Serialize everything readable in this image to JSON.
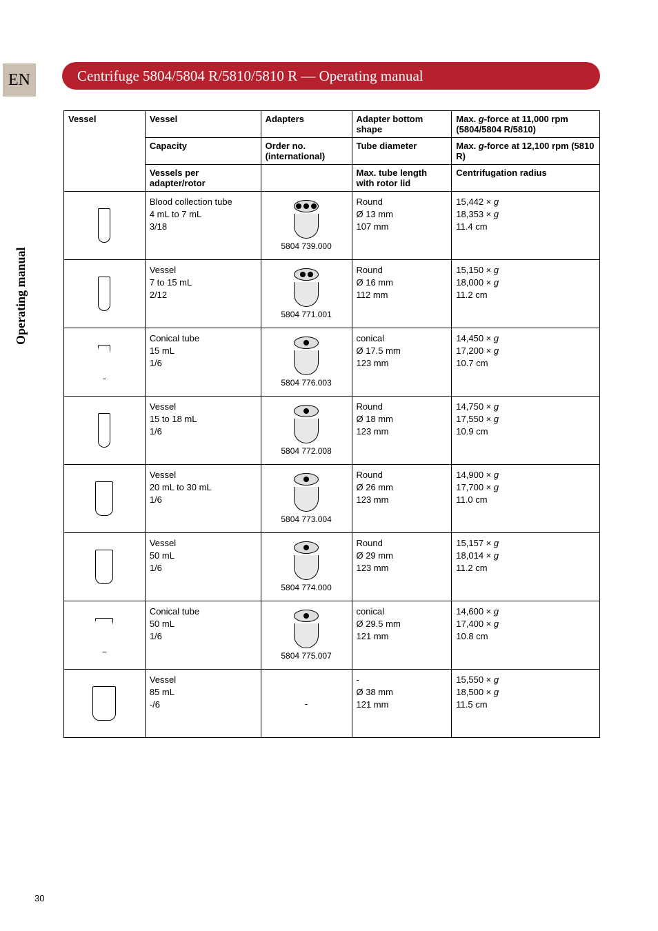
{
  "side": {
    "lang": "EN",
    "vertical": "Operating manual"
  },
  "header": {
    "title": "Centrifuge 5804/5804 R/5810/5810 R  —  Operating manual"
  },
  "page_number": "30",
  "table": {
    "headers": {
      "c1": "Vessel",
      "c2a": "Vessel",
      "c2b": "Capacity",
      "c2c": "Vessels per adapter/rotor",
      "c3a": "Adapters",
      "c3b": "Order no. (international)",
      "c4a": "Adapter bottom shape",
      "c4b": "Tube diameter",
      "c4c": "Max. tube length with rotor lid",
      "c5a_prefix": "Max. ",
      "c5a_g": "g",
      "c5a_suffix": "-force at 11,000 rpm (5804/5804 R/5810)",
      "c5b_prefix": "Max. ",
      "c5b_g": "g",
      "c5b_suffix": "-force at 12,100 rpm (5810 R)",
      "c5c": "Centrifugation radius"
    },
    "rows": [
      {
        "vessel_type": "narrow",
        "adapter_dots": 3,
        "name": "Blood collection tube",
        "capacity": "4 mL to 7 mL",
        "per": "3/18",
        "order": "5804 739.000",
        "shape": "Round",
        "diam": "Ø 13 mm",
        "len": "107 mm",
        "g1": "15,442 × ",
        "g2": "18,353 × ",
        "rad": "11.4 cm"
      },
      {
        "vessel_type": "narrow",
        "adapter_dots": 2,
        "name": "Vessel",
        "capacity": "7 to 15 mL",
        "per": "2/12",
        "order": "5804 771.001",
        "shape": "Round",
        "diam": "Ø 16 mm",
        "len": "112 mm",
        "g1": "15,150 × ",
        "g2": "18,000 × ",
        "rad": "11.2 cm"
      },
      {
        "vessel_type": "conical",
        "adapter_dots": 1,
        "name": "Conical tube",
        "capacity": "15 mL",
        "per": "1/6",
        "order": "5804 776.003",
        "shape": "conical",
        "diam": "Ø 17.5 mm",
        "len": "123 mm",
        "g1": "14,450 × ",
        "g2": "17,200 × ",
        "rad": "10.7 cm"
      },
      {
        "vessel_type": "round18",
        "adapter_dots": 1,
        "name": "Vessel",
        "capacity": "15 to 18 mL",
        "per": "1/6",
        "order": "5804 772.008",
        "shape": "Round",
        "diam": "Ø 18 mm",
        "len": "123 mm",
        "g1": "14,750 × ",
        "g2": "17,550 × ",
        "rad": "10.9 cm"
      },
      {
        "vessel_type": "wide",
        "adapter_dots": 1,
        "name": "Vessel",
        "capacity": "20 mL to 30 mL",
        "per": "1/6",
        "order": "5804 773.004",
        "shape": "Round",
        "diam": "Ø 26 mm",
        "len": "123 mm",
        "g1": "14,900 × ",
        "g2": "17,700 × ",
        "rad": "11.0 cm"
      },
      {
        "vessel_type": "wide",
        "adapter_dots": 1,
        "name": "Vessel",
        "capacity": "50 mL",
        "per": "1/6",
        "order": "5804 774.000",
        "shape": "Round",
        "diam": "Ø 29 mm",
        "len": "123 mm",
        "g1": "15,157 × ",
        "g2": "18,014 × ",
        "rad": "11.2 cm"
      },
      {
        "vessel_type": "conical-wide",
        "adapter_dots": 1,
        "name": "Conical tube",
        "capacity": "50 mL",
        "per": "1/6",
        "order": "5804 775.007",
        "shape": "conical",
        "diam": "Ø 29.5 mm",
        "len": "121 mm",
        "g1": "14,600 × ",
        "g2": "17,400 × ",
        "rad": "10.8 cm"
      },
      {
        "vessel_type": "xwide",
        "adapter_dots": 0,
        "name": "Vessel",
        "capacity": "85 mL",
        "per": "-/6",
        "order": "-",
        "shape": "-",
        "diam": "Ø 38 mm",
        "len": "121 mm",
        "g1": "15,550 × ",
        "g2": "18,500 × ",
        "rad": "11.5 cm"
      }
    ],
    "g_symbol": "g"
  }
}
